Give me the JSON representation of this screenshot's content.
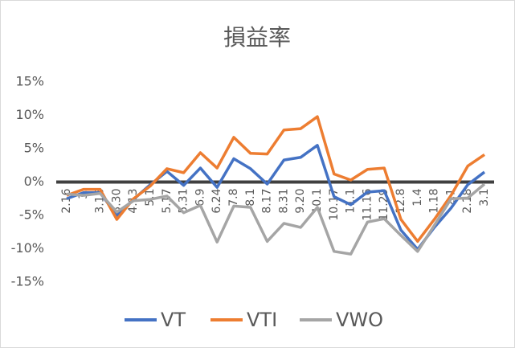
{
  "chart_data": {
    "type": "line",
    "title": "損益率",
    "categories": [
      "2.16",
      "3.",
      "3.16",
      "3.30",
      "4.13",
      "5.1",
      "5.17",
      "5.31",
      "6.9",
      "6.24",
      "7.8",
      "8.1",
      "8.17",
      "8.31",
      "9.20",
      "10.1",
      "10.17",
      "11.1",
      "11.16",
      "11.29",
      "12.8",
      "1.4",
      "1.18",
      "2.1",
      "2.18",
      "3.1"
    ],
    "series": [
      {
        "name": "VT",
        "color": "#4472c4",
        "values": [
          -2.5,
          -1.6,
          -1.6,
          -5,
          -2.6,
          -0.4,
          1.6,
          -0.5,
          2.1,
          -0.8,
          3.5,
          2,
          -0.3,
          3.3,
          3.7,
          5.5,
          -2.2,
          -3.4,
          -1.5,
          -1.3,
          -7.2,
          -10.1,
          -6.8,
          -3.9,
          -0.4,
          1.5
        ]
      },
      {
        "name": "VTI",
        "color": "#ed7d31",
        "values": [
          -2,
          -1.1,
          -1.1,
          -5.6,
          -2.5,
          -0.6,
          2,
          1.4,
          4.4,
          2.1,
          6.7,
          4.3,
          4.2,
          7.8,
          8,
          9.8,
          1.2,
          0.3,
          1.9,
          2.1,
          -5.6,
          -8.9,
          -5.6,
          -2,
          2.4,
          4.1
        ]
      },
      {
        "name": "VWO",
        "color": "#a5a5a5",
        "values": [
          -1.8,
          -2,
          -1.7,
          -4.5,
          -2.8,
          -2.6,
          -2.1,
          -4.6,
          -3.5,
          -9,
          -3.6,
          -3.8,
          -8.9,
          -6.2,
          -6.8,
          -3.8,
          -10.4,
          -10.8,
          -6,
          -5.5,
          -8,
          -10.4,
          -6.5,
          -2.5,
          -2.4,
          -0.3
        ]
      }
    ],
    "ylim": [
      -15,
      15
    ],
    "yticks": [
      {
        "value": -15,
        "label": "-15%"
      },
      {
        "value": -10,
        "label": "-10%"
      },
      {
        "value": -5,
        "label": "-5%"
      },
      {
        "value": 0,
        "label": "0%"
      },
      {
        "value": 5,
        "label": "5%"
      },
      {
        "value": 10,
        "label": "10%"
      },
      {
        "value": 15,
        "label": "15%"
      }
    ],
    "legend": "bottom"
  }
}
